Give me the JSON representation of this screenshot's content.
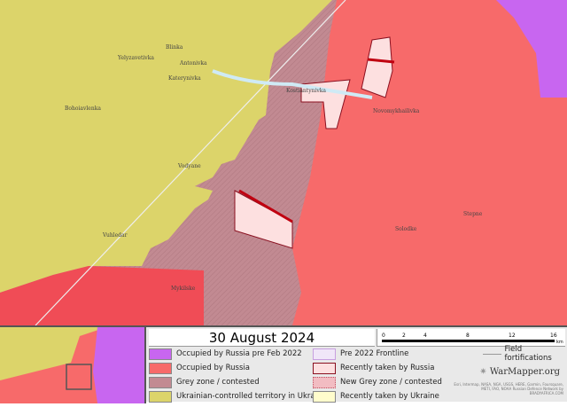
{
  "map": {
    "towns": [
      "Blinka",
      "Yelyzavetivka",
      "Antonivka",
      "Katerynivka",
      "Bohoiavlenka",
      "Kostiantynivka",
      "Novomykhailivka",
      "Vodyane",
      "Vuhledar",
      "Solodke",
      "Stepne",
      "Mykilske"
    ],
    "colors": {
      "ukraine": "#dcd46a",
      "russia": "#f76a6a",
      "grey_zone": "#c28a92",
      "pre2022": "#c866f0",
      "recent_russia": "#fde0e0"
    }
  },
  "legend": {
    "date": "30 August 2024",
    "scale": {
      "ticks": [
        "0",
        "2",
        "4",
        "8",
        "12",
        "16"
      ],
      "unit": "km"
    },
    "items": [
      {
        "label": "Occupied by Russia pre Feb 2022",
        "color": "#c866f0"
      },
      {
        "label": "Occupied by Russia",
        "color": "#f76a6a"
      },
      {
        "label": "Grey zone / contested",
        "color": "#c28a92"
      },
      {
        "label": "Ukrainian-controlled territory in Ukraine",
        "color": "#dcd46a"
      },
      {
        "label": "Pre 2022 Frontline",
        "color": "#f0e6f8"
      },
      {
        "label": "Recently taken by Russia",
        "color": "#fde0e0"
      },
      {
        "label": "New Grey zone / contested",
        "color": "#f2bcc2"
      },
      {
        "label": "Recently taken by Ukraine",
        "color": "#fffccc"
      }
    ],
    "field_fortifications": "Field fortifications",
    "brand": "WarMapper.org",
    "attribution": "Esri, Intermap, NASA, NGA, USGS, HERE, Garmin, Foursquare, METI, FAO, NOAA Russian Defence Network by BRADYAFRICA.COM"
  }
}
